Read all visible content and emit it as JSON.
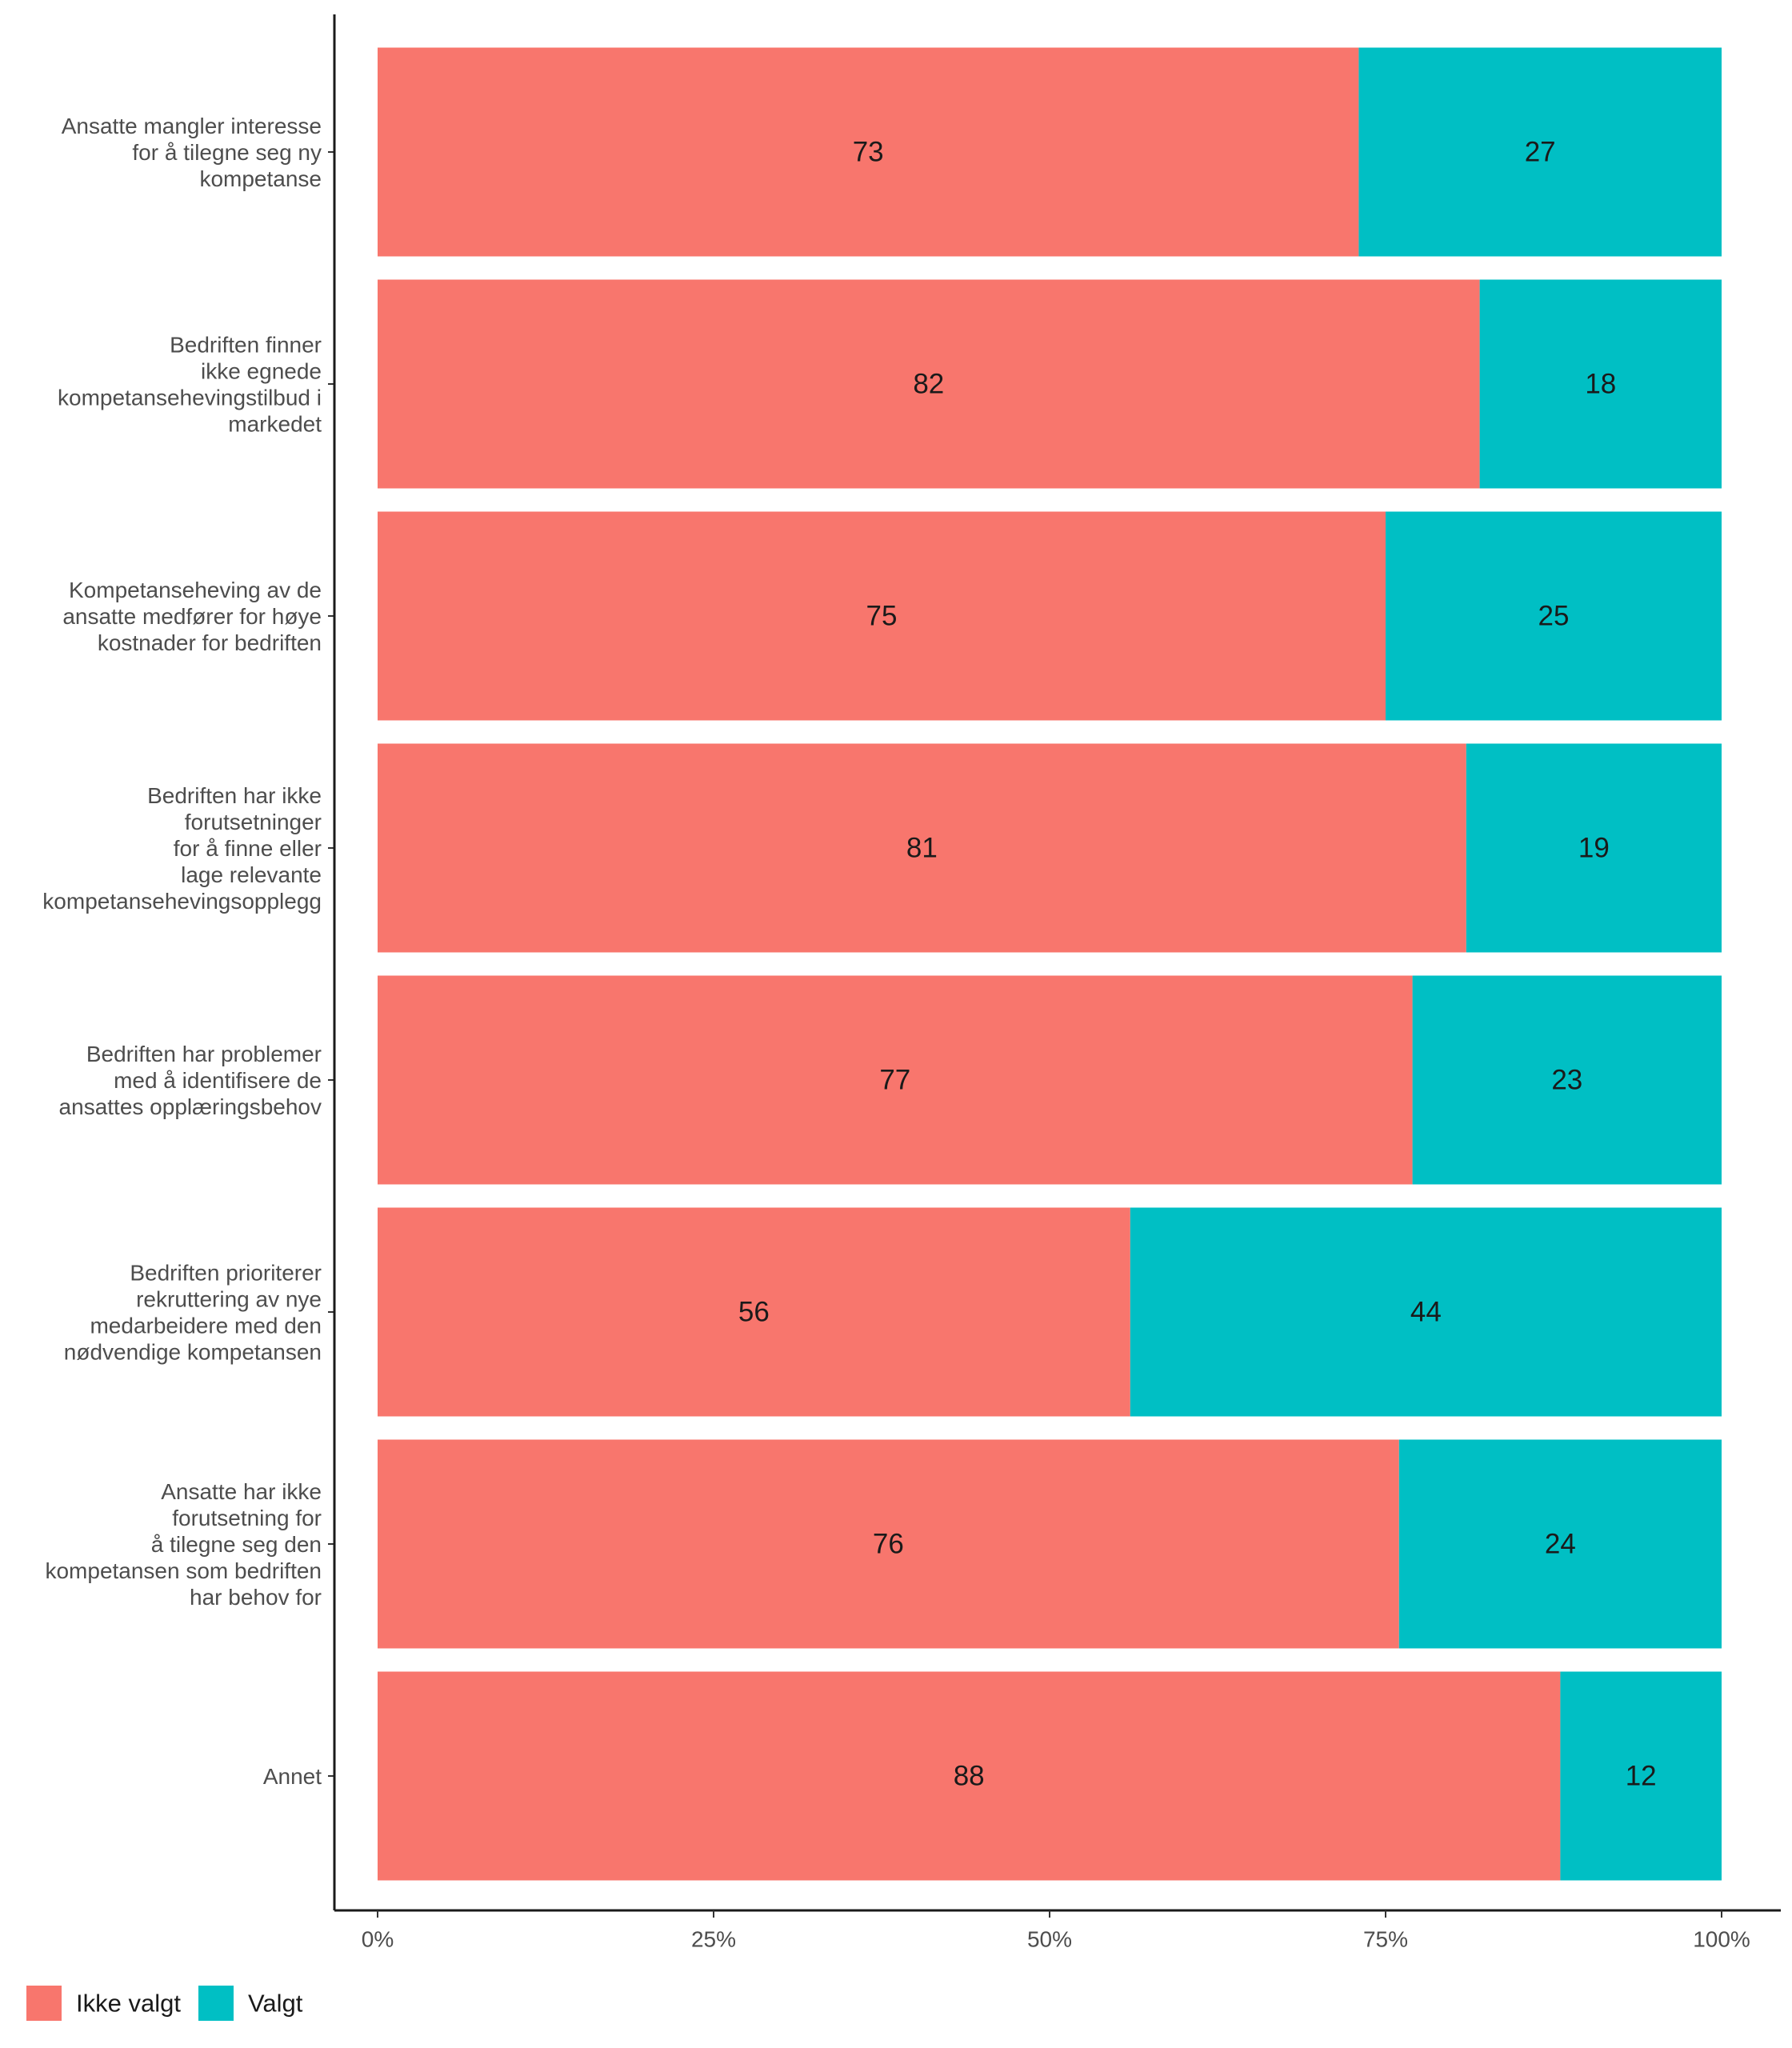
{
  "chart_data": {
    "type": "bar",
    "orientation": "horizontal",
    "stacked": "percent",
    "categories": [
      [
        "Ansatte mangler interesse",
        "for å tilegne seg ny",
        "kompetanse"
      ],
      [
        "Bedriften finner",
        "ikke egnede",
        "kompetansehevingstilbud i",
        "markedet"
      ],
      [
        "Kompetanseheving av de",
        "ansatte medfører for høye",
        "kostnader for bedriften"
      ],
      [
        "Bedriften har ikke",
        "forutsetninger",
        "for å finne eller",
        "lage relevante",
        "kompetansehevingsopplegg"
      ],
      [
        "Bedriften har problemer",
        "med å identifisere de",
        "ansattes opplæringsbehov"
      ],
      [
        "Bedriften prioriterer",
        "rekruttering av nye",
        "medarbeidere med den",
        "nødvendige kompetansen"
      ],
      [
        "Ansatte har ikke",
        "forutsetning for",
        "å tilegne seg den",
        "kompetansen som bedriften",
        "har behov for"
      ],
      [
        "Annet"
      ]
    ],
    "series": [
      {
        "name": "Ikke valgt",
        "color": "#F8766D",
        "values": [
          73,
          82,
          75,
          81,
          77,
          56,
          76,
          88
        ]
      },
      {
        "name": "Valgt",
        "color": "#00BFC4",
        "values": [
          27,
          18,
          25,
          19,
          23,
          44,
          24,
          12
        ]
      }
    ],
    "data_labels": {
      "Ikke valgt": [
        "73",
        "82",
        "75",
        "81",
        "77",
        "56",
        "76",
        "88"
      ],
      "Valgt": [
        "27",
        "18",
        "25",
        "19",
        "23",
        "44",
        "24",
        "12"
      ]
    },
    "xlim": [
      0,
      100
    ],
    "x_ticks": [
      0,
      25,
      50,
      75,
      100
    ],
    "x_tick_labels": [
      "0%",
      "25%",
      "50%",
      "75%",
      "100%"
    ],
    "grid": false,
    "legend": {
      "position": "bottom-left",
      "entries": [
        {
          "label": "Ikke valgt",
          "color": "#F8766D"
        },
        {
          "label": "Valgt",
          "color": "#00BFC4"
        }
      ]
    }
  }
}
